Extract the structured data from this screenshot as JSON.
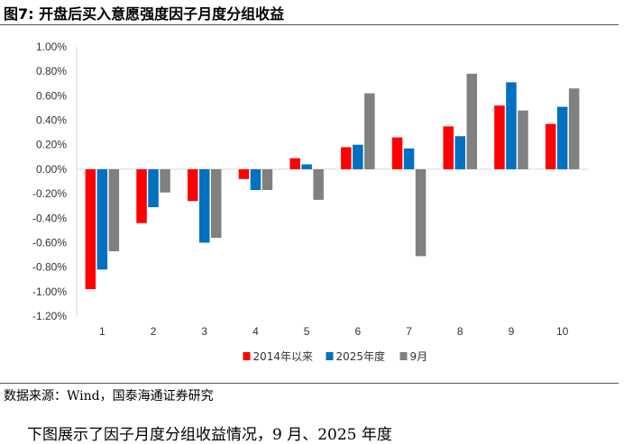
{
  "figure": {
    "title": "图7:  开盘后买入意愿强度因子月度分组收益",
    "source": "数据来源：Wind，国泰海通证券研究",
    "body_text": "下图展示了因子月度分组收益情况，9 月、2025 年度"
  },
  "colors": {
    "s1": "#ff0000",
    "s2": "#0070c0",
    "s3": "#808080"
  },
  "chart_data": {
    "type": "bar",
    "categories": [
      "1",
      "2",
      "3",
      "4",
      "5",
      "6",
      "7",
      "8",
      "9",
      "10"
    ],
    "series": [
      {
        "name": "2014年以来",
        "values": [
          -0.98,
          -0.44,
          -0.26,
          -0.08,
          0.09,
          0.18,
          0.26,
          0.35,
          0.52,
          0.37
        ]
      },
      {
        "name": "2025年度",
        "values": [
          -0.82,
          -0.31,
          -0.6,
          -0.17,
          0.04,
          0.2,
          0.17,
          0.27,
          0.71,
          0.51
        ]
      },
      {
        "name": "9月",
        "values": [
          -0.67,
          -0.19,
          -0.56,
          -0.17,
          -0.25,
          0.62,
          -0.71,
          0.78,
          0.48,
          0.66
        ]
      }
    ],
    "ylim": [
      -1.2,
      1.0
    ],
    "yticks": [
      "1.00%",
      "0.80%",
      "0.60%",
      "0.40%",
      "0.20%",
      "0.00%",
      "-0.20%",
      "-0.40%",
      "-0.60%",
      "-0.80%",
      "-1.00%",
      "-1.20%"
    ],
    "yunit": "%",
    "legend_position": "bottom",
    "grid": false
  }
}
